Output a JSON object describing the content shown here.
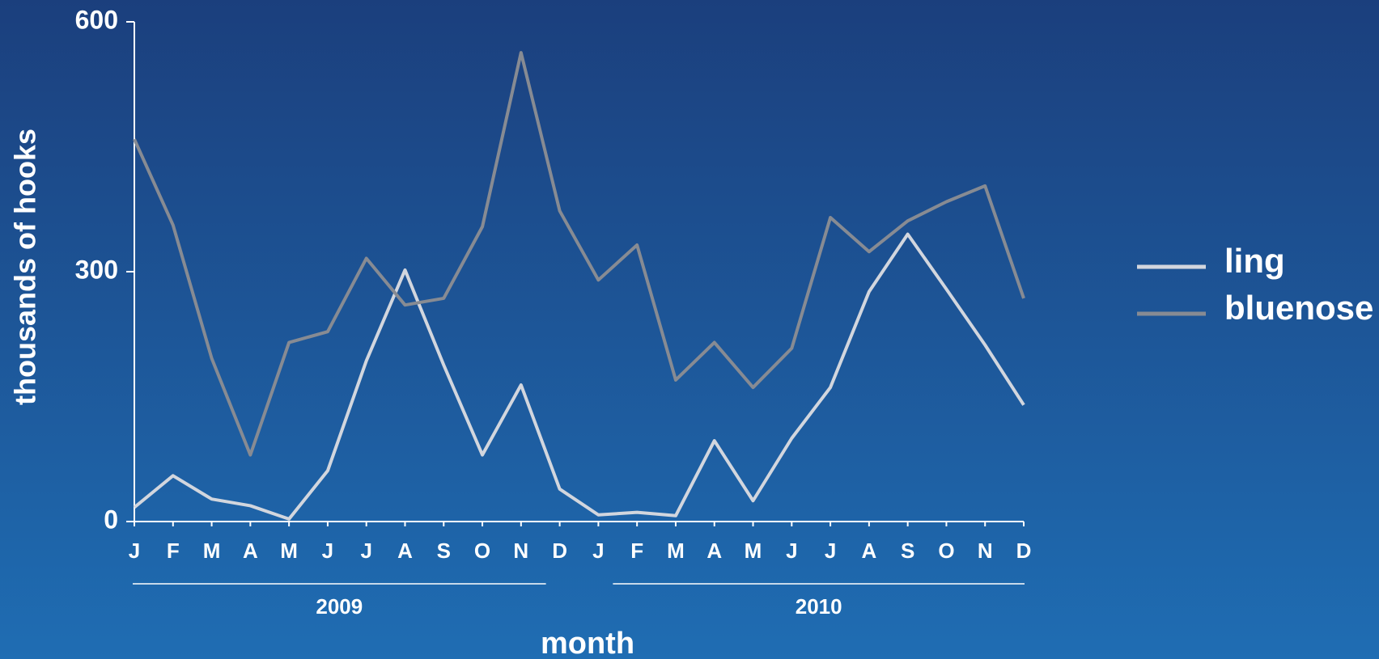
{
  "chart_data": {
    "type": "line",
    "xlabel": "month",
    "ylabel": "thousands of hooks",
    "categories": [
      "J",
      "F",
      "M",
      "A",
      "M",
      "J",
      "J",
      "A",
      "S",
      "O",
      "N",
      "D",
      "J",
      "F",
      "M",
      "A",
      "M",
      "J",
      "J",
      "A",
      "S",
      "O",
      "N",
      "D"
    ],
    "category_groups": [
      {
        "label": "2009",
        "count": 12
      },
      {
        "label": "2010",
        "count": 12
      }
    ],
    "series": [
      {
        "name": "ling",
        "color": "#d2d6de",
        "values": [
          17,
          55,
          27,
          19,
          3,
          61,
          193,
          302,
          188,
          80,
          164,
          39,
          8,
          11,
          7,
          97,
          25,
          100,
          161,
          276,
          345,
          279,
          212,
          140
        ]
      },
      {
        "name": "bluenose",
        "color": "#878b93",
        "values": [
          459,
          356,
          196,
          80,
          215,
          228,
          316,
          260,
          268,
          354,
          563,
          373,
          290,
          332,
          170,
          215,
          161,
          208,
          365,
          324,
          361,
          384,
          403,
          268
        ]
      }
    ],
    "ylim": [
      0,
      600
    ],
    "yticks": [
      0,
      300,
      600
    ],
    "legend": "right"
  }
}
